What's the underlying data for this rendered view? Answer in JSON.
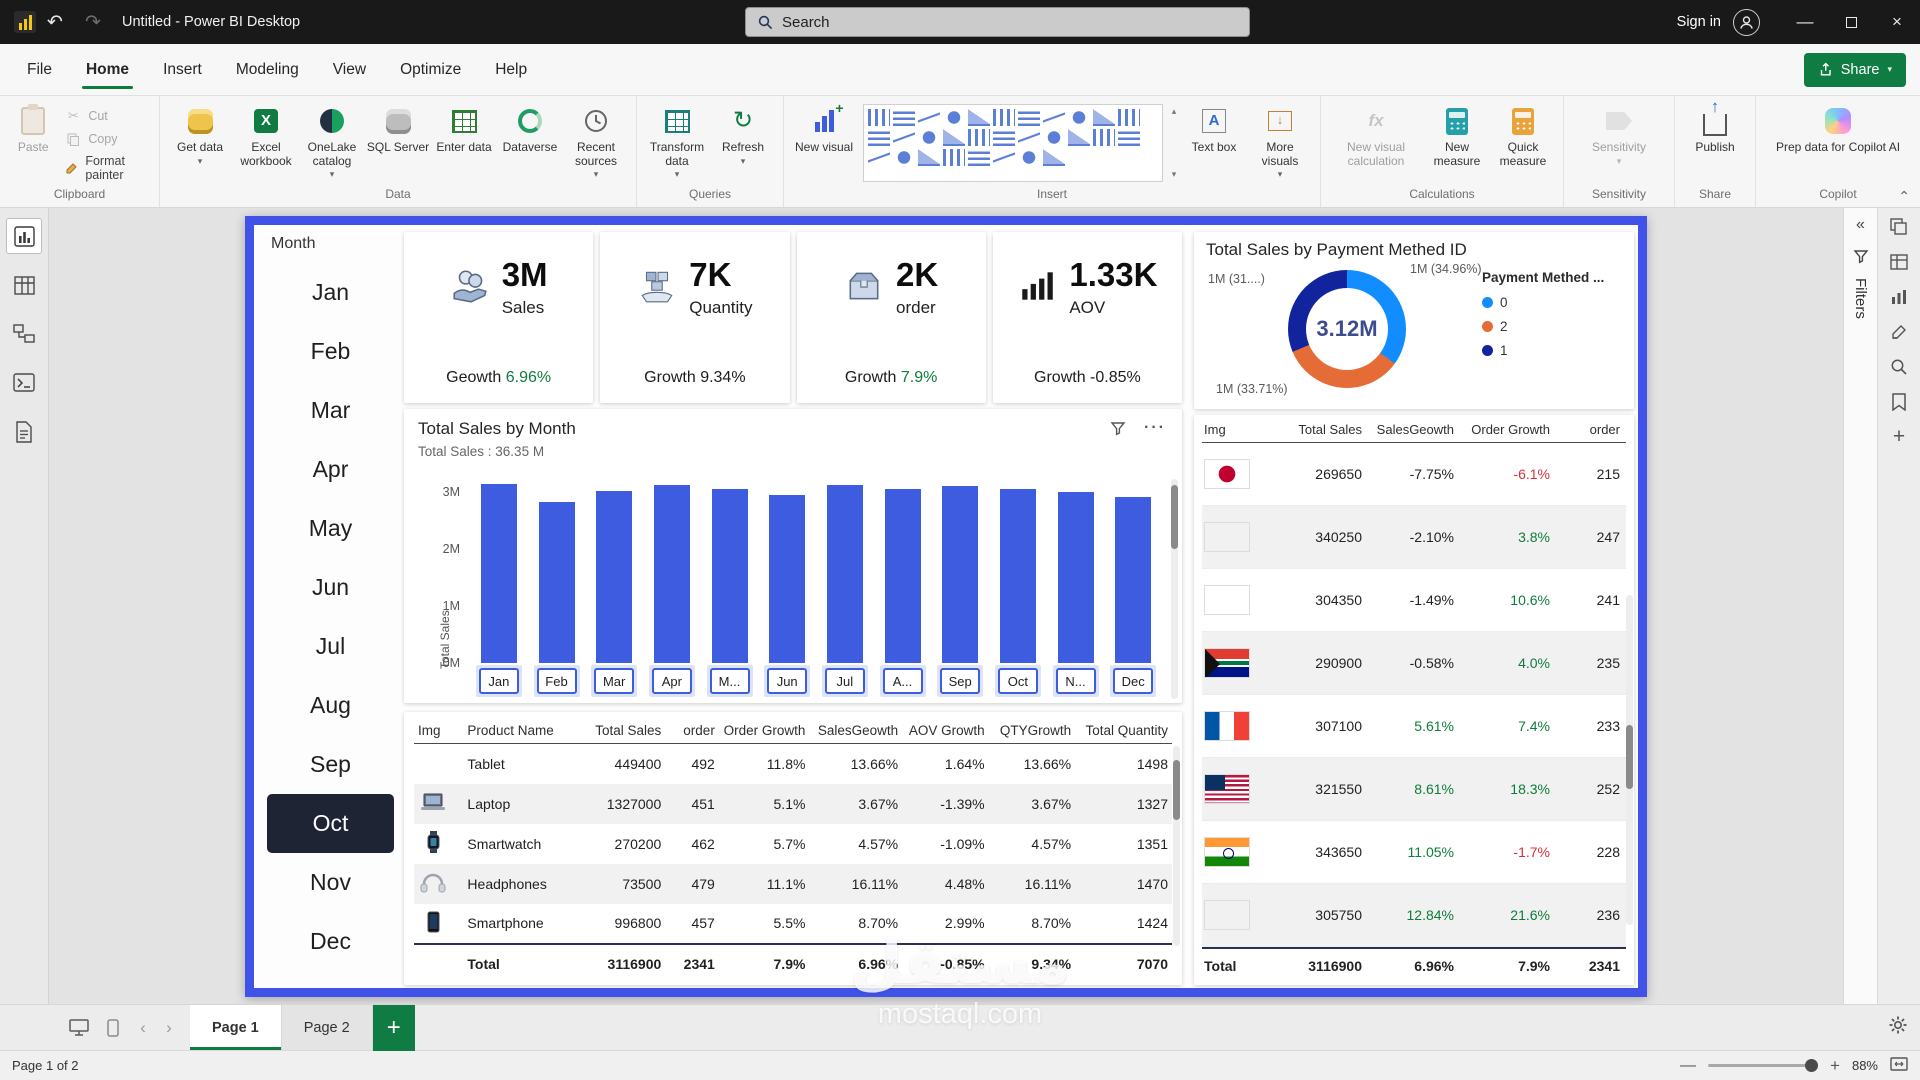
{
  "colors": {
    "accent": "#3e5ce0",
    "selection_border": "#4152e8",
    "green": "#0e7c3a",
    "red": "#d13438",
    "bar": "#3e5ce0",
    "donut_blue": "#118DFF",
    "donut_orange": "#E66C37",
    "donut_navy": "#12239E",
    "share_green": "#0f7c43"
  },
  "titlebar": {
    "title": "Untitled - Power BI Desktop",
    "search_placeholder": "Search",
    "sign_in": "Sign in"
  },
  "menubar": {
    "items": [
      {
        "label": "File",
        "active": false
      },
      {
        "label": "Home",
        "active": true
      },
      {
        "label": "Insert",
        "active": false
      },
      {
        "label": "Modeling",
        "active": false
      },
      {
        "label": "View",
        "active": false
      },
      {
        "label": "Optimize",
        "active": false
      },
      {
        "label": "Help",
        "active": false
      }
    ],
    "share": "Share"
  },
  "ribbon": {
    "clipboard": {
      "label": "Clipboard",
      "paste": "Paste",
      "cut": "Cut",
      "copy": "Copy",
      "format_painter": "Format painter"
    },
    "data": {
      "label": "Data",
      "buttons": [
        "Get data",
        "Excel workbook",
        "OneLake catalog",
        "SQL Server",
        "Enter data",
        "Dataverse",
        "Recent sources"
      ]
    },
    "queries": {
      "label": "Queries",
      "transform": "Transform data",
      "refresh": "Refresh"
    },
    "insert": {
      "label": "Insert",
      "new_visual": "New visual",
      "text_box": "Text box",
      "more_visuals": "More visuals"
    },
    "calculations": {
      "label": "Calculations",
      "new_visual_calculation": "New visual calculation",
      "new_measure": "New measure",
      "quick_measure": "Quick measure"
    },
    "sensitivity": {
      "label": "Sensitivity",
      "button": "Sensitivity"
    },
    "share": {
      "label": "Share",
      "publish": "Publish"
    },
    "copilot": {
      "label": "Copilot",
      "button": "Prep data for Copilot AI"
    }
  },
  "slicer": {
    "title": "Month",
    "items": [
      "Jan",
      "Feb",
      "Mar",
      "Apr",
      "May",
      "Jun",
      "Jul",
      "Aug",
      "Sep",
      "Oct",
      "Nov",
      "Dec"
    ],
    "selected": "Oct"
  },
  "kpis": [
    {
      "icon": "sales-icon",
      "value": "3M",
      "label": "Sales",
      "growth_prefix": "Geowth",
      "growth": "6.96%",
      "growth_green": true
    },
    {
      "icon": "quantity-icon",
      "value": "7K",
      "label": "Quantity",
      "growth_prefix": "Growth",
      "growth": "9.34%",
      "growth_green": false
    },
    {
      "icon": "order-icon",
      "value": "2K",
      "label": "order",
      "growth_prefix": "Growth",
      "growth": "7.9%",
      "growth_green": true
    },
    {
      "icon": "aov-icon",
      "value": "1.33K",
      "label": "AOV",
      "growth_prefix": "Growth",
      "growth": "-0.85%",
      "growth_green": false
    }
  ],
  "chart_data": [
    {
      "type": "bar",
      "title": "Total Sales by Month",
      "subtitle": "Total Sales : 36.35 M",
      "ylabel": "Total Sales",
      "y_ticks": [
        "3M",
        "2M",
        "1M",
        "0M"
      ],
      "y_tick_values": [
        3,
        2,
        1,
        0
      ],
      "ylim": [
        0,
        3.3
      ],
      "categories": [
        "Jan",
        "Feb",
        "Mar",
        "Apr",
        "M...",
        "Jun",
        "Jul",
        "A...",
        "Sep",
        "Oct",
        "N...",
        "Dec"
      ],
      "values": [
        3.15,
        2.82,
        3.02,
        3.12,
        3.05,
        2.95,
        3.12,
        3.05,
        3.1,
        3.06,
        3.0,
        2.91
      ]
    },
    {
      "type": "donut",
      "title": "Total Sales by Payment Methed ID",
      "center_label": "3.12M",
      "legend_title": "Payment Methed ...",
      "segments": [
        {
          "id": "0",
          "pct": 34.96,
          "callout": "1M (34.96%)"
        },
        {
          "id": "2",
          "pct": 33.71,
          "callout": "1M (33.71%)"
        },
        {
          "id": "1",
          "pct": 31.33,
          "callout": "1M (31....)"
        }
      ]
    },
    {
      "type": "table",
      "name": "product-table",
      "columns": [
        "Img",
        "Product Name",
        "Total Sales",
        "order",
        "Order Growth",
        "SalesGeowth",
        "AOV Growth",
        "QTYGrowth",
        "Total Quantity"
      ],
      "rows": [
        {
          "img": "none",
          "product": "Tablet",
          "total_sales": "449400",
          "order": "492",
          "order_growth": "11.8%",
          "sales_growth": "13.66%",
          "aov_growth": "1.64%",
          "qty_growth": "13.66%",
          "total_quantity": "1498"
        },
        {
          "img": "laptop-image",
          "product": "Laptop",
          "total_sales": "1327000",
          "order": "451",
          "order_growth": "5.1%",
          "sales_growth": "3.67%",
          "aov_growth": "-1.39%",
          "qty_growth": "3.67%",
          "total_quantity": "1327"
        },
        {
          "img": "smartwatch-image",
          "product": "Smartwatch",
          "total_sales": "270200",
          "order": "462",
          "order_growth": "5.7%",
          "sales_growth": "4.57%",
          "aov_growth": "-1.09%",
          "qty_growth": "4.57%",
          "total_quantity": "1351"
        },
        {
          "img": "headphones-image",
          "product": "Headphones",
          "total_sales": "73500",
          "order": "479",
          "order_growth": "11.1%",
          "sales_growth": "16.11%",
          "aov_growth": "4.48%",
          "qty_growth": "16.11%",
          "total_quantity": "1470"
        },
        {
          "img": "smartphone-image",
          "product": "Smartphone",
          "total_sales": "996800",
          "order": "457",
          "order_growth": "5.5%",
          "sales_growth": "8.70%",
          "aov_growth": "2.99%",
          "qty_growth": "8.70%",
          "total_quantity": "1424"
        }
      ],
      "total_row": {
        "product": "Total",
        "total_sales": "3116900",
        "order": "2341",
        "order_growth": "7.9%",
        "sales_growth": "6.96%",
        "aov_growth": "-0.85%",
        "qty_growth": "9.34%",
        "total_quantity": "7070"
      }
    },
    {
      "type": "table",
      "name": "country-table",
      "columns": [
        "Img",
        "Total Sales",
        "SalesGeowth",
        "Order Growth",
        "order"
      ],
      "rows": [
        {
          "img": "japan-flag",
          "total_sales": "269650",
          "sales_growth": "-7.75%",
          "order_growth": "-6.1%",
          "order": "215"
        },
        {
          "img": "none",
          "total_sales": "340250",
          "sales_growth": "-2.10%",
          "order_growth": "3.8%",
          "order": "247"
        },
        {
          "img": "none",
          "total_sales": "304350",
          "sales_growth": "-1.49%",
          "order_growth": "10.6%",
          "order": "241"
        },
        {
          "img": "south-africa-flag",
          "total_sales": "290900",
          "sales_growth": "-0.58%",
          "order_growth": "4.0%",
          "order": "235"
        },
        {
          "img": "france-flag",
          "total_sales": "307100",
          "sales_growth": "5.61%",
          "order_growth": "7.4%",
          "order": "233"
        },
        {
          "img": "usa-flag",
          "total_sales": "321550",
          "sales_growth": "8.61%",
          "order_growth": "18.3%",
          "order": "252"
        },
        {
          "img": "india-flag",
          "total_sales": "343650",
          "sales_growth": "11.05%",
          "order_growth": "-1.7%",
          "order": "228"
        },
        {
          "img": "none",
          "total_sales": "305750",
          "sales_growth": "12.84%",
          "order_growth": "21.6%",
          "order": "236"
        }
      ],
      "total_row": {
        "label": "Total",
        "total_sales": "3116900",
        "sales_growth": "6.96%",
        "order_growth": "7.9%",
        "order": "2341"
      }
    }
  ],
  "filters_pane": {
    "title": "Filters"
  },
  "pages": {
    "tabs": [
      "Page 1",
      "Page 2"
    ],
    "active": "Page 1"
  },
  "statusbar": {
    "page_info": "Page 1 of 2",
    "zoom": "88%"
  },
  "watermark": {
    "line1": "مستقل",
    "line2": "mostaql.com"
  }
}
